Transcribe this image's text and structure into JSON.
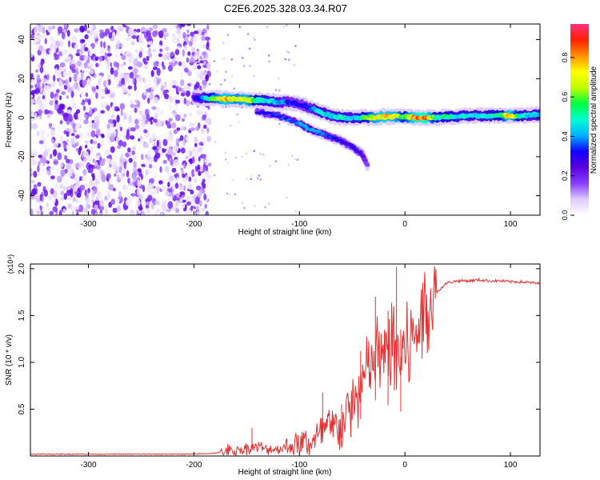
{
  "figure": {
    "title": "C2E6.2025.328.03.34.R07",
    "colors": {
      "snr_line": "#e53030",
      "axis": "#000000"
    }
  },
  "chart_data": [
    {
      "type": "heatmap",
      "xlabel": "Height of straight line (km)",
      "ylabel": "Frequency (Hz)",
      "xlim": [
        -355,
        128
      ],
      "ylim": [
        -50,
        48
      ],
      "x_ticks": [
        -300,
        -200,
        -100,
        0,
        100
      ],
      "x_tick_labels": [
        "-300",
        "-200",
        "-100",
        "0",
        "100"
      ],
      "y_ticks": [
        -40,
        -20,
        0,
        20,
        40
      ],
      "y_tick_labels": [
        "-40",
        "-20",
        "0",
        "20",
        "40"
      ],
      "colorbar": {
        "label": "Normalized spectral amplitude",
        "range": [
          0,
          0.97
        ],
        "ticks": [
          0.0,
          0.2,
          0.4,
          0.6,
          0.8
        ],
        "tick_labels": [
          "0.0",
          "0.2",
          "0.4",
          "0.6",
          "0.8"
        ],
        "colormap": [
          "#ffffff",
          "#dccbff",
          "#8a3cff",
          "#5a00e0",
          "#1000ff",
          "#00b0ff",
          "#00ffd0",
          "#00ff40",
          "#c0ff00",
          "#ffff00",
          "#ff9000",
          "#ff2000",
          "#ff3080"
        ]
      },
      "noise_region": {
        "x_range": [
          -355,
          -185
        ],
        "y_range": [
          -50,
          48
        ],
        "amplitude_range": [
          0.02,
          0.25
        ]
      },
      "signal_track": [
        {
          "x": -200,
          "y": 10,
          "amp": 0.25
        },
        {
          "x": -190,
          "y": 10,
          "amp": 0.45
        },
        {
          "x": -180,
          "y": 10,
          "amp": 0.65
        },
        {
          "x": -170,
          "y": 9.5,
          "amp": 0.8
        },
        {
          "x": -160,
          "y": 9.5,
          "amp": 0.7
        },
        {
          "x": -150,
          "y": 9,
          "amp": 0.75
        },
        {
          "x": -140,
          "y": 9,
          "amp": 0.55
        },
        {
          "x": -130,
          "y": 8.5,
          "amp": 0.5
        },
        {
          "x": -120,
          "y": 8,
          "amp": 0.45
        },
        {
          "x": -110,
          "y": 8,
          "amp": 0.35
        },
        {
          "x": -100,
          "y": 7,
          "amp": 0.3
        },
        {
          "x": -90,
          "y": 5,
          "amp": 0.35
        },
        {
          "x": -80,
          "y": 3,
          "amp": 0.5
        },
        {
          "x": -70,
          "y": 1,
          "amp": 0.45
        },
        {
          "x": -60,
          "y": 0,
          "amp": 0.5
        },
        {
          "x": -50,
          "y": 0,
          "amp": 0.45
        },
        {
          "x": -40,
          "y": 0,
          "amp": 0.55
        },
        {
          "x": -30,
          "y": 0,
          "amp": 0.7
        },
        {
          "x": -20,
          "y": 0.5,
          "amp": 0.8
        },
        {
          "x": -10,
          "y": 0.5,
          "amp": 0.75
        },
        {
          "x": 0,
          "y": 0.5,
          "amp": 0.6
        },
        {
          "x": 10,
          "y": 0,
          "amp": 0.85
        },
        {
          "x": 20,
          "y": 0,
          "amp": 0.9
        },
        {
          "x": 30,
          "y": 0,
          "amp": 0.5
        },
        {
          "x": 40,
          "y": 0.5,
          "amp": 0.55
        },
        {
          "x": 50,
          "y": 0.5,
          "amp": 0.5
        },
        {
          "x": 60,
          "y": 1,
          "amp": 0.5
        },
        {
          "x": 70,
          "y": 1,
          "amp": 0.45
        },
        {
          "x": 80,
          "y": 1,
          "amp": 0.5
        },
        {
          "x": 90,
          "y": 1,
          "amp": 0.55
        },
        {
          "x": 100,
          "y": 1,
          "amp": 0.8
        },
        {
          "x": 110,
          "y": 1,
          "amp": 0.5
        },
        {
          "x": 120,
          "y": 1.5,
          "amp": 0.45
        },
        {
          "x": 128,
          "y": 1.5,
          "amp": 0.45
        }
      ],
      "branch_track": [
        {
          "x": -140,
          "y": 3,
          "amp": 0.3
        },
        {
          "x": -120,
          "y": 1,
          "amp": 0.35
        },
        {
          "x": -100,
          "y": -3,
          "amp": 0.4
        },
        {
          "x": -90,
          "y": -6,
          "amp": 0.45
        },
        {
          "x": -80,
          "y": -8,
          "amp": 0.4
        },
        {
          "x": -70,
          "y": -10,
          "amp": 0.35
        },
        {
          "x": -60,
          "y": -12,
          "amp": 0.3
        },
        {
          "x": -50,
          "y": -15,
          "amp": 0.3
        },
        {
          "x": -40,
          "y": -19,
          "amp": 0.25
        },
        {
          "x": -35,
          "y": -25,
          "amp": 0.15
        }
      ]
    },
    {
      "type": "line",
      "xlabel": "Height of straight line (km)",
      "ylabel": "SNR (10 * v/v)",
      "y_multiplier_label": "(x10⁴)",
      "xlim": [
        -355,
        128
      ],
      "ylim": [
        0,
        2.05
      ],
      "x_ticks": [
        -300,
        -200,
        -100,
        0,
        100
      ],
      "x_tick_labels": [
        "-300",
        "-200",
        "-100",
        "0",
        "100"
      ],
      "y_ticks": [
        0.5,
        1.0,
        1.5,
        2.0
      ],
      "y_tick_labels": [
        "0.5",
        "1.0",
        "1.5",
        "2.0"
      ],
      "series": [
        {
          "x": [
            -355,
            -300,
            -250,
            -200,
            -180,
            -170,
            -160,
            -150,
            -140,
            -130,
            -120,
            -110,
            -100,
            -90,
            -80,
            -75,
            -70,
            -65,
            -60,
            -55,
            -50,
            -45,
            -40,
            -35,
            -30,
            -25,
            -20,
            -15,
            -12,
            -10,
            -5,
            0,
            5,
            10,
            15,
            20,
            25,
            30,
            35,
            40,
            50,
            60,
            70,
            80,
            90,
            100,
            110,
            120,
            128
          ],
          "y": [
            0.02,
            0.02,
            0.02,
            0.02,
            0.03,
            0.05,
            0.06,
            0.08,
            0.1,
            0.07,
            0.08,
            0.1,
            0.12,
            0.15,
            0.2,
            0.3,
            0.22,
            0.35,
            0.3,
            0.45,
            0.55,
            0.6,
            0.8,
            0.9,
            1.0,
            1.1,
            1.0,
            1.15,
            1.2,
            1.05,
            1.05,
            1.1,
            1.2,
            1.3,
            1.45,
            1.6,
            1.7,
            1.75,
            1.8,
            1.85,
            1.87,
            1.87,
            1.88,
            1.87,
            1.87,
            1.86,
            1.86,
            1.85,
            1.84
          ]
        }
      ],
      "peaks": [
        {
          "x": -168,
          "y": 0.13
        },
        {
          "x": -145,
          "y": 0.3
        },
        {
          "x": -78,
          "y": 0.68
        },
        {
          "x": -60,
          "y": 0.55
        },
        {
          "x": -42,
          "y": 1.12
        },
        {
          "x": -28,
          "y": 1.7
        },
        {
          "x": -16,
          "y": 1.55
        },
        {
          "x": -8,
          "y": 2.02
        },
        {
          "x": -4,
          "y": 1.35
        }
      ]
    }
  ]
}
